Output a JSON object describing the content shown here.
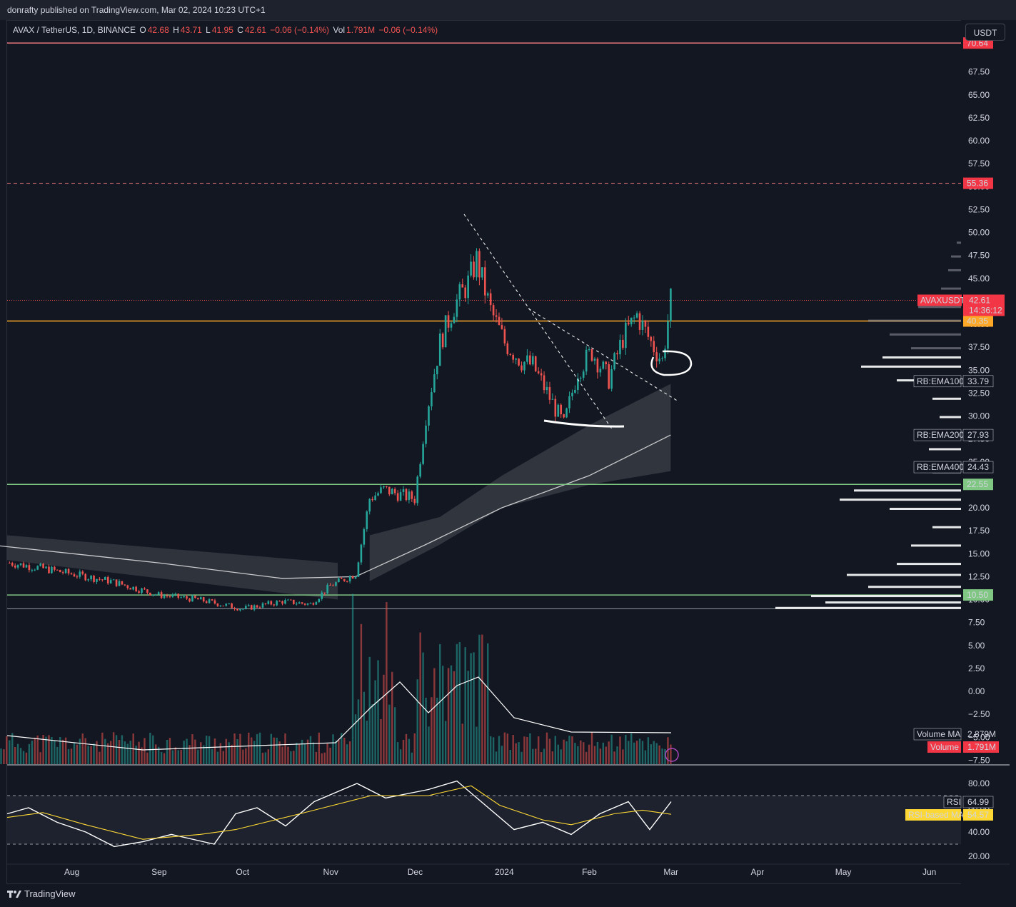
{
  "publisher": "donrafty published on TradingView.com, Mar 02, 2024 10:23 UTC+1",
  "legend": {
    "symbol": "AVAX / TetherUS, 1D, BINANCE",
    "open_label": "O",
    "open": "42.68",
    "high_label": "H",
    "high": "43.71",
    "low_label": "L",
    "low": "41.95",
    "close_label": "C",
    "close": "42.61",
    "change": "−0.06 (−0.14%)",
    "vol_label": "Vol",
    "vol": "1.791M",
    "vol_change": "−0.06 (−0.14%)"
  },
  "currency": "USDT",
  "footer_brand": "TradingView",
  "colors": {
    "bull": "#26a69a",
    "bear": "#ef5350",
    "orange": "#ffa726",
    "green_level": "#81c784",
    "red_level": "#f77c80",
    "label_red": "#f23645",
    "white": "#ffffff",
    "rsi_ma": "#fdd835"
  },
  "chart_data": {
    "type": "line",
    "title": "AVAX / TetherUS, 1D, BINANCE",
    "price_axis_ticks": [
      "70.64",
      "67.50",
      "65.00",
      "62.50",
      "60.00",
      "57.50",
      "55.00",
      "52.50",
      "50.00",
      "47.50",
      "45.00",
      "42.50",
      "40.00",
      "37.50",
      "35.00",
      "32.50",
      "30.00",
      "27.50",
      "25.00",
      "22.50",
      "20.00",
      "17.50",
      "15.00",
      "12.50",
      "10.00",
      "7.50",
      "5.00",
      "2.50",
      "0.00",
      "−2.50",
      "−5.00",
      "−7.50"
    ],
    "tick_values": [
      67.5,
      65,
      62.5,
      60,
      57.5,
      55,
      52.5,
      50,
      47.5,
      45,
      42.5,
      40,
      37.5,
      35,
      32.5,
      30,
      27.5,
      25,
      22.5,
      20,
      17.5,
      15,
      12.5,
      10,
      7.5,
      5,
      2.5,
      0,
      -2.5,
      -5,
      -7.5
    ],
    "tick_labels": [
      "67.50",
      "65.00",
      "62.50",
      "60.00",
      "57.50",
      "55.00",
      "52.50",
      "50.00",
      "47.50",
      "45.00",
      "42.50",
      "40.00",
      "37.50",
      "35.00",
      "32.50",
      "30.00",
      "27.50",
      "25.00",
      "22.50",
      "20.00",
      "17.50",
      "15.00",
      "12.50",
      "10.00",
      "7.50",
      "5.00",
      "2.50",
      "0.00",
      "−2.50",
      "−5.00",
      "−7.50"
    ],
    "rsi_ticks": [
      "80.00",
      "60.00",
      "40.00",
      "20.00"
    ],
    "rsi_tick_values": [
      80,
      60,
      40,
      20
    ],
    "x_labels": [
      "Aug",
      "Sep",
      "Oct",
      "Nov",
      "Dec",
      "2024",
      "Feb",
      "Mar",
      "Apr",
      "May",
      "Jun"
    ],
    "price_close_series": {
      "name": "AVAX",
      "x": [
        "2023-07-10",
        "2023-07-20",
        "2023-08-01",
        "2023-08-15",
        "2023-09-01",
        "2023-09-15",
        "2023-10-01",
        "2023-10-15",
        "2023-10-25",
        "2023-11-01",
        "2023-11-10",
        "2023-11-15",
        "2023-11-20",
        "2023-11-25",
        "2023-12-01",
        "2023-12-05",
        "2023-12-10",
        "2023-12-15",
        "2023-12-20",
        "2023-12-23",
        "2023-12-28",
        "2024-01-02",
        "2024-01-08",
        "2024-01-12",
        "2024-01-18",
        "2024-01-23",
        "2024-01-28",
        "2024-02-02",
        "2024-02-08",
        "2024-02-13",
        "2024-02-18",
        "2024-02-23",
        "2024-02-27",
        "2024-03-01"
      ],
      "values": [
        14.0,
        13.5,
        12.8,
        12.0,
        10.5,
        10.0,
        9.0,
        9.8,
        9.5,
        11.5,
        12.8,
        21.0,
        22.0,
        21.5,
        21.0,
        30.0,
        38.0,
        42.0,
        44.5,
        47.0,
        41.5,
        38.0,
        36.0,
        35.5,
        32.0,
        29.0,
        35.0,
        37.0,
        34.0,
        38.5,
        41.0,
        38.0,
        36.0,
        42.61
      ]
    },
    "ema100": {
      "name": "RB:EMA100",
      "value": "33.79"
    },
    "ema200": {
      "name": "RB:EMA200",
      "value": "27.93"
    },
    "ema400": {
      "name": "RB:EMA400",
      "value": "24.43"
    },
    "levels": [
      {
        "label": "70.64",
        "value": 70.64,
        "style": "solid"
      },
      {
        "label": "55.36",
        "value": 55.36,
        "style": "dashed"
      },
      {
        "label": "40.35",
        "value": 40.35,
        "style": "solid"
      },
      {
        "label": "22.55",
        "value": 22.55,
        "style": "solid"
      },
      {
        "label": "10.50",
        "value": 10.5,
        "style": "solid"
      }
    ],
    "last_price": {
      "symbol": "AVAXUSDT",
      "price": "42.61",
      "countdown": "14:36:12"
    },
    "volume": {
      "ma_label": "Volume MA",
      "ma_value": "2.879M",
      "label": "Volume",
      "value": "1.791M"
    },
    "rsi": {
      "label": "RSI",
      "value": "64.99",
      "ma_label": "RSI-based MA",
      "ma_value": "54.57",
      "upper": 70,
      "lower": 30
    }
  }
}
